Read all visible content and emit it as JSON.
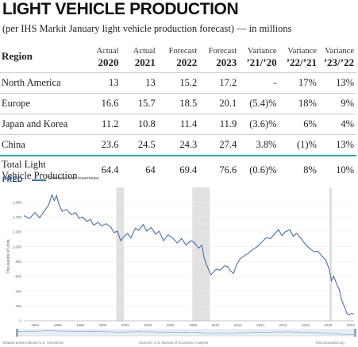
{
  "title": "LIGHT VEHICLE PRODUCTION",
  "subtitle": "(per IHS Markit January light vehicle production forecast) — in millions",
  "table": {
    "region_header": "Region",
    "columns": [
      {
        "label": "Actual",
        "year": "2020"
      },
      {
        "label": "Actual",
        "year": "2021"
      },
      {
        "label": "Forecast",
        "year": "2022"
      },
      {
        "label": "Forecast",
        "year": "2023"
      },
      {
        "label": "Variance",
        "year": "’21/’20"
      },
      {
        "label": "Variance",
        "year": "’22/’21"
      },
      {
        "label": "Variance",
        "year": "’23/’22"
      }
    ],
    "rows": [
      {
        "region": "North America",
        "values": [
          "13",
          "13",
          "15.2",
          "17.2",
          "-",
          "17%",
          "13%"
        ]
      },
      {
        "region": "Europe",
        "values": [
          "16.6",
          "15.7",
          "18.5",
          "20.1",
          "(5.4)%",
          "18%",
          "9%"
        ]
      },
      {
        "region": "Japan and Korea",
        "values": [
          "11.2",
          "10.8",
          "11.4",
          "11.9",
          "(3.6)%",
          "6%",
          "4%"
        ]
      },
      {
        "region": "China",
        "values": [
          "23.6",
          "24.5",
          "24.3",
          "27.4",
          "3.8%",
          "(1)%",
          "13%"
        ]
      }
    ],
    "total": {
      "region_line1": "Total Light",
      "region_line2": "Vehicle Production",
      "values": [
        "64.4",
        "64",
        "69.4",
        "76.6",
        "(0.6)%",
        "8%",
        "10%"
      ]
    }
  },
  "fred": {
    "logo": "FRED",
    "legend": "Domestic Auto Inventories",
    "ylabel": "Thousands of Units",
    "footer_left": "Shaded areas indicate U.S. recessions",
    "footer_center": "Sources: U.S. Bureau of Economic Analysis",
    "footer_right": "fred.stlouisfed.org",
    "colors": {
      "line": "#4572a7",
      "recession": "#e1e1e1",
      "grid": "#ececec"
    }
  },
  "chart_data": {
    "type": "line",
    "title": "",
    "series": [
      {
        "name": "Domestic Auto Inventories"
      }
    ],
    "ylabel": "Thousands of Units",
    "xlim": [
      1993,
      2022.3
    ],
    "ylim": [
      0,
      1800
    ],
    "yticks": [
      0,
      200,
      400,
      600,
      800,
      1000,
      1200,
      1400,
      1600
    ],
    "xticks": [
      1994,
      1996,
      1998,
      2000,
      2002,
      2004,
      2006,
      2008,
      2010,
      2012,
      2014,
      2016,
      2018,
      2020,
      2022
    ],
    "recessions": [
      [
        2001.2,
        2001.9
      ],
      [
        2007.95,
        2009.5
      ],
      [
        2020.1,
        2020.35
      ]
    ],
    "points": [
      [
        1993.0,
        1420
      ],
      [
        1993.5,
        1380
      ],
      [
        1994.0,
        1460
      ],
      [
        1994.4,
        1390
      ],
      [
        1994.8,
        1480
      ],
      [
        1995.2,
        1560
      ],
      [
        1995.5,
        1700
      ],
      [
        1995.7,
        1620
      ],
      [
        1995.9,
        1690
      ],
      [
        1996.1,
        1580
      ],
      [
        1996.4,
        1480
      ],
      [
        1996.8,
        1500
      ],
      [
        1997.2,
        1430
      ],
      [
        1997.6,
        1460
      ],
      [
        1997.9,
        1380
      ],
      [
        1998.2,
        1400
      ],
      [
        1998.6,
        1340
      ],
      [
        1998.9,
        1370
      ],
      [
        1999.2,
        1290
      ],
      [
        1999.6,
        1330
      ],
      [
        1999.9,
        1280
      ],
      [
        2000.3,
        1310
      ],
      [
        2000.7,
        1270
      ],
      [
        2001.0,
        1190
      ],
      [
        2001.3,
        1210
      ],
      [
        2001.6,
        1080
      ],
      [
        2001.9,
        1140
      ],
      [
        2002.2,
        1180
      ],
      [
        2002.5,
        1120
      ],
      [
        2002.9,
        1250
      ],
      [
        2003.2,
        1220
      ],
      [
        2003.6,
        1300
      ],
      [
        2003.9,
        1210
      ],
      [
        2004.3,
        1260
      ],
      [
        2004.7,
        1170
      ],
      [
        2005.0,
        1210
      ],
      [
        2005.4,
        1080
      ],
      [
        2005.8,
        1160
      ],
      [
        2006.2,
        1120
      ],
      [
        2006.6,
        1050
      ],
      [
        2007.0,
        1110
      ],
      [
        2007.4,
        1020
      ],
      [
        2007.8,
        1080
      ],
      [
        2008.1,
        1060
      ],
      [
        2008.5,
        980
      ],
      [
        2008.8,
        1020
      ],
      [
        2009.0,
        850
      ],
      [
        2009.2,
        760
      ],
      [
        2009.4,
        690
      ],
      [
        2009.6,
        620
      ],
      [
        2009.8,
        650
      ],
      [
        2010.1,
        700
      ],
      [
        2010.4,
        680
      ],
      [
        2010.8,
        740
      ],
      [
        2011.1,
        730
      ],
      [
        2011.3,
        680
      ],
      [
        2011.6,
        640
      ],
      [
        2011.9,
        760
      ],
      [
        2012.2,
        840
      ],
      [
        2012.6,
        880
      ],
      [
        2012.9,
        910
      ],
      [
        2013.3,
        960
      ],
      [
        2013.7,
        1000
      ],
      [
        2014.1,
        1060
      ],
      [
        2014.5,
        1120
      ],
      [
        2014.9,
        1110
      ],
      [
        2015.3,
        1180
      ],
      [
        2015.6,
        1230
      ],
      [
        2015.9,
        1150
      ],
      [
        2016.2,
        1200
      ],
      [
        2016.6,
        1230
      ],
      [
        2016.9,
        1140
      ],
      [
        2017.2,
        1180
      ],
      [
        2017.6,
        1110
      ],
      [
        2017.9,
        1050
      ],
      [
        2018.2,
        1000
      ],
      [
        2018.5,
        960
      ],
      [
        2018.8,
        930
      ],
      [
        2019.1,
        940
      ],
      [
        2019.4,
        880
      ],
      [
        2019.8,
        820
      ],
      [
        2020.1,
        690
      ],
      [
        2020.3,
        540
      ],
      [
        2020.5,
        600
      ],
      [
        2020.8,
        480
      ],
      [
        2021.0,
        420
      ],
      [
        2021.2,
        280
      ],
      [
        2021.5,
        170
      ],
      [
        2021.7,
        90
      ],
      [
        2021.9,
        80
      ],
      [
        2022.1,
        100
      ],
      [
        2022.3,
        90
      ]
    ]
  }
}
